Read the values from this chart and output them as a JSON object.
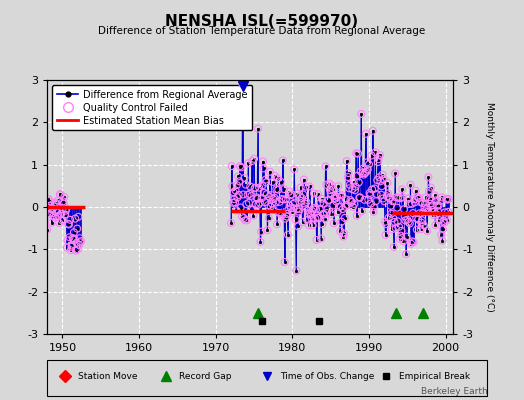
{
  "title": "NENSHA ISL(=599970)",
  "subtitle": "Difference of Station Temperature Data from Regional Average",
  "ylabel": "Monthly Temperature Anomaly Difference (°C)",
  "xlim": [
    1948,
    2001
  ],
  "ylim": [
    -3,
    3
  ],
  "yticks": [
    -3,
    -2,
    -1,
    0,
    1,
    2,
    3
  ],
  "xticks": [
    1950,
    1960,
    1970,
    1980,
    1990,
    2000
  ],
  "bg_color": "#d8d8d8",
  "plot_bg": "#d8d8d8",
  "line_color": "#0000cc",
  "qc_color": "#ff80ff",
  "bias_color": "#ff0000",
  "watermark": "Berkeley Earth",
  "record_gaps": [
    1975.5,
    1993.5,
    1997.0
  ],
  "tobs_changes": [
    1973.5
  ],
  "empirical_breaks": [
    1976.0,
    1983.5
  ],
  "station_moves": [],
  "seed": 12345,
  "bias_segments": [
    {
      "x_start": 1947,
      "x_end": 1953,
      "y": 0.0
    },
    {
      "x_start": 1972,
      "x_end": 1979,
      "y": -0.1
    },
    {
      "x_start": 1993,
      "x_end": 2001,
      "y": -0.15
    }
  ],
  "segment1_start": 1948.0,
  "segment1_end": 1952.5,
  "segment2_start": 1972.0,
  "segment2_end": 2000.5
}
